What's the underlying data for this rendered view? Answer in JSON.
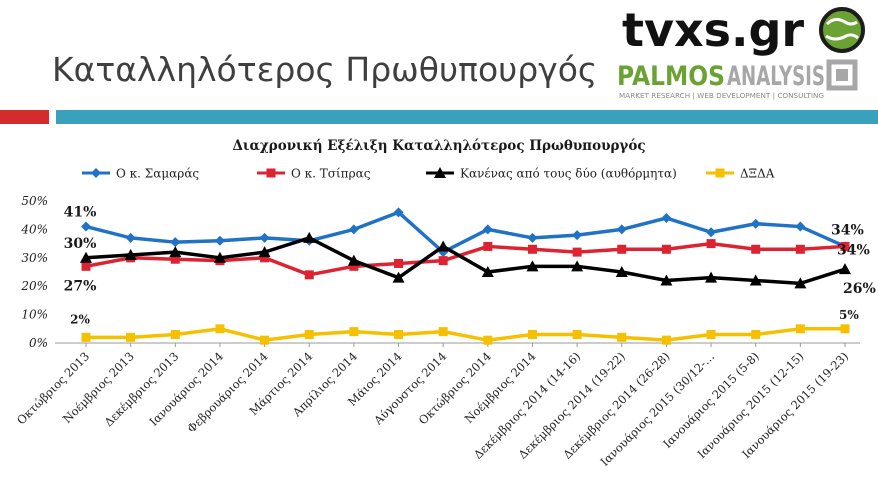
{
  "slide": {
    "title": "Καταλληλότερος Πρωθυπουργός",
    "logo_tvxs": "tvxs.gr",
    "logo_palmos_main": "PALMOS",
    "logo_palmos_secondary": "ANALYSIS",
    "logo_palmos_tagline": "MARKET RESEARCH | WEB DEVELOPMENT | CONSULTING"
  },
  "colors": {
    "samaras": "#1f72c6",
    "tsipras": "#dd2331",
    "neither": "#000000",
    "dxda": "#f5c000",
    "accent_red": "#d22c2c",
    "accent_teal": "#3aa1bd",
    "logo_green": "#6aa234"
  },
  "chart_data": {
    "type": "line",
    "title": "Διαχρονική Εξέλιξη Καταλληλότερος Πρωθυπουργός",
    "xlabel": "",
    "ylabel": "",
    "ylim": [
      0,
      50
    ],
    "yticks": [
      "0%",
      "10%",
      "20%",
      "30%",
      "40%",
      "50%"
    ],
    "grid": false,
    "legend_position": "top",
    "categories": [
      "Οκτώβριος 2013",
      "Νοέμβριος 2013",
      "Δεκέμβριος 2013",
      "Ιανουάριος 2014",
      "Φεβρουάριος 2014",
      "Μάρτιος 2014",
      "Απρίλιος 2014",
      "Μάιος 2014",
      "Αύγουστος 2014",
      "Οκτώβριος 2014",
      "Νοέμβριος 2014",
      "Δεκέμβριος 2014 (14-16)",
      "Δεκέμβριος 2014 (19-22)",
      "Δεκέμβριος 2014 (26-28)",
      "Ιανουάριος 2015 (30/12-…",
      "Ιανουάριος 2015 (5-8)",
      "Ιανουάριος 2015 (12-15)",
      "Ιανουάριος 2015 (19-23)"
    ],
    "series": [
      {
        "name": "Ο κ. Σαμαράς",
        "color": "#1f72c6",
        "marker": "diamond",
        "values": [
          41,
          37,
          35.5,
          36,
          37,
          36,
          40,
          46,
          32,
          40,
          37,
          38,
          40,
          44,
          39,
          42,
          41,
          34
        ],
        "labels": {
          "0": "41%",
          "17": "34%"
        }
      },
      {
        "name": "Ο κ. Τσίπρας",
        "color": "#dd2331",
        "marker": "square",
        "values": [
          27,
          30,
          29.5,
          29,
          30,
          24,
          27,
          28,
          29,
          34,
          33,
          32,
          33,
          33,
          35,
          33,
          33,
          34
        ],
        "labels": {
          "0": "27%",
          "17": "34%"
        }
      },
      {
        "name": "Κανένας από τους δύο (αυθόρμητα)",
        "color": "#000000",
        "marker": "triangle",
        "values": [
          30,
          31,
          32,
          30,
          32,
          37,
          29,
          23,
          34,
          25,
          27,
          27,
          25,
          22,
          23,
          22,
          21,
          26
        ],
        "labels": {
          "0": "30%",
          "17": "26%"
        }
      },
      {
        "name": "ΔΞΔΑ",
        "color": "#f5c000",
        "marker": "square",
        "values": [
          2,
          2,
          3,
          5,
          1,
          3,
          4,
          3,
          4,
          1,
          3,
          3,
          2,
          1,
          3,
          3,
          5,
          5
        ],
        "labels": {
          "0": "2%",
          "17": "5%"
        }
      }
    ]
  }
}
